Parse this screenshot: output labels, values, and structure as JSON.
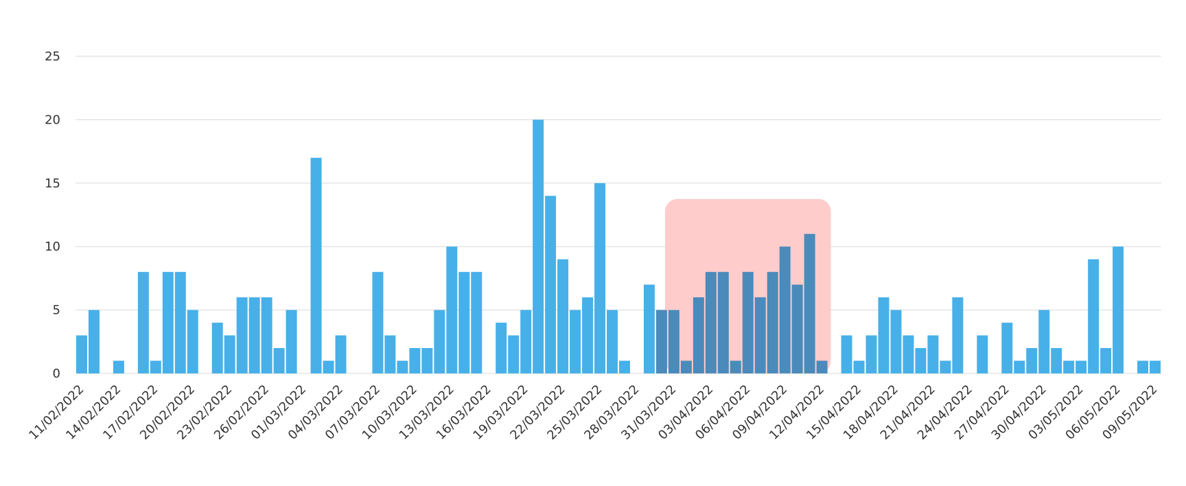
{
  "chart_data": {
    "type": "bar",
    "title": "",
    "xlabel": "",
    "ylabel": "",
    "ylim": [
      0,
      25
    ],
    "yticks": [
      0,
      5,
      10,
      15,
      20,
      25
    ],
    "grid": true,
    "legend": "none",
    "x_tick_labels": [
      "11/02/2022",
      "14/02/2022",
      "17/02/2022",
      "20/02/2022",
      "23/02/2022",
      "26/02/2022",
      "01/03/2022",
      "04/03/2022",
      "07/03/2022",
      "10/03/2022",
      "13/03/2022",
      "16/03/2022",
      "19/03/2022",
      "22/03/2022",
      "25/03/2022",
      "28/03/2022",
      "31/03/2022",
      "03/04/2022",
      "06/04/2022",
      "09/04/2022",
      "12/04/2022",
      "15/04/2022",
      "18/04/2022",
      "21/04/2022",
      "24/04/2022",
      "27/04/2022",
      "30/04/2022",
      "03/05/2022",
      "06/05/2022",
      "09/05/2022"
    ],
    "first_date": "11/02/2022",
    "values": [
      3,
      5,
      0,
      1,
      0,
      8,
      1,
      8,
      8,
      5,
      0,
      4,
      3,
      6,
      6,
      6,
      2,
      5,
      0,
      17,
      1,
      3,
      0,
      0,
      8,
      3,
      1,
      2,
      2,
      5,
      10,
      8,
      8,
      0,
      4,
      3,
      5,
      20,
      14,
      9,
      5,
      6,
      15,
      5,
      1,
      0,
      7,
      5,
      5,
      1,
      6,
      8,
      8,
      1,
      8,
      6,
      8,
      10,
      7,
      11,
      1,
      0,
      3,
      1,
      3,
      6,
      5,
      3,
      2,
      3,
      1,
      6,
      0,
      3,
      0,
      4,
      1,
      2,
      5,
      2,
      1,
      1,
      9,
      2,
      10,
      0,
      1,
      1
    ],
    "highlight": {
      "from": "30/03/2022",
      "to": "13/04/2022"
    },
    "colors": {
      "bar": "#47b0e8",
      "bar_highlight": "#4a8bbb",
      "highlight_band": "#ffcccc",
      "grid": "#d9d9d9",
      "tick_text": "#333333"
    }
  }
}
